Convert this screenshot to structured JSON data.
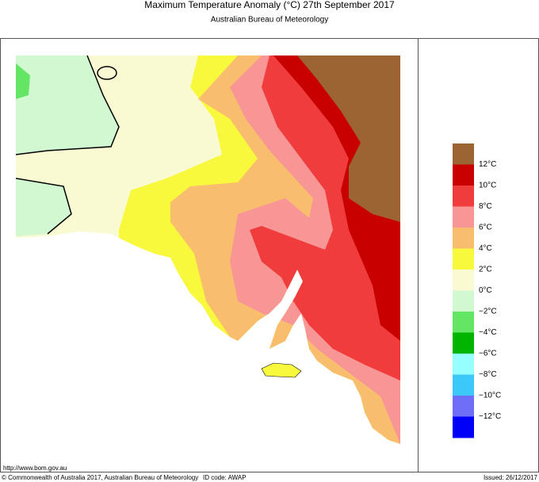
{
  "header": {
    "title": "Maximum Temperature Anomaly (°C)  27th September 2017",
    "subtitle": "Australian Bureau of Meteorology"
  },
  "legend": {
    "colors": [
      "#9c6432",
      "#c80000",
      "#f03c3c",
      "#f89696",
      "#f8be6e",
      "#f8f83c",
      "#fafad2",
      "#d2f8d2",
      "#64e664",
      "#00b400",
      "#96ffff",
      "#3cc8f8",
      "#6e6ef8",
      "#0000f8"
    ],
    "labels": [
      "12°C",
      "10°C",
      "8°C",
      "6°C",
      "4°C",
      "2°C",
      "0°C",
      "−2°C",
      "−4°C",
      "−6°C",
      "−8°C",
      "−10°C",
      "−12°C"
    ]
  },
  "footer": {
    "url": "http://www.bom.gov.au",
    "copyright": "© Commonwealth of Australia 2017, Australian Bureau of Meteorology",
    "id_code": "ID code: AWAP",
    "issued": "Issued: 26/12/2017"
  }
}
